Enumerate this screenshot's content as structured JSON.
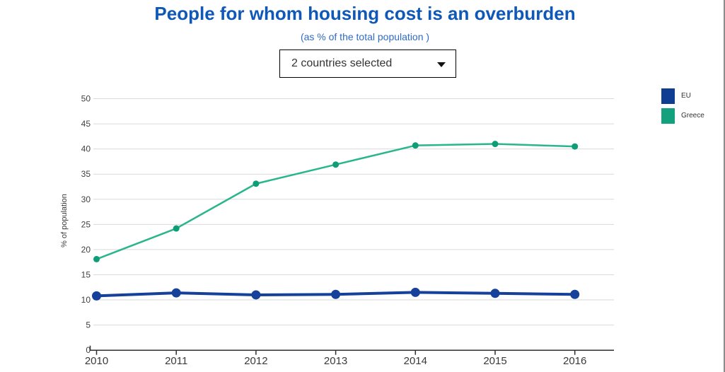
{
  "header": {
    "title": "People for whom housing cost is an overburden",
    "subtitle": "(as % of the total population )"
  },
  "theme": {
    "title_color": "#0f58b8",
    "subtitle_color": "#2e6bc6",
    "grid_color": "#d9d9d9",
    "axis_color": "#2e2e2e",
    "tick_label_color": "#404040",
    "year_label_color": "#3a3a3a"
  },
  "dropdown": {
    "value": "2 countries selected"
  },
  "chart_data": {
    "type": "line",
    "x": [
      2010,
      2011,
      2012,
      2013,
      2014,
      2015,
      2016
    ],
    "series": [
      {
        "name": "EU",
        "values": [
          10.8,
          11.4,
          11.0,
          11.1,
          11.5,
          11.3,
          11.1
        ],
        "color": "#15419b",
        "marker_color": "#15419b",
        "swatch_color": "#0e3d91",
        "line_width": 4,
        "marker_radius": 6.5
      },
      {
        "name": "Greece",
        "values": [
          18.1,
          24.2,
          33.1,
          36.9,
          40.7,
          41.0,
          40.5
        ],
        "color": "#2ab68c",
        "marker_color": "#0d9e77",
        "swatch_color": "#12a17c",
        "line_width": 2.5,
        "marker_radius": 4.5
      }
    ],
    "ylabel": "% of population",
    "xlabel": "",
    "yticks": [
      0,
      5,
      10,
      15,
      20,
      25,
      30,
      35,
      40,
      45,
      50
    ],
    "ylim": [
      0,
      50
    ],
    "grid": true,
    "legend_position": "top-right"
  }
}
